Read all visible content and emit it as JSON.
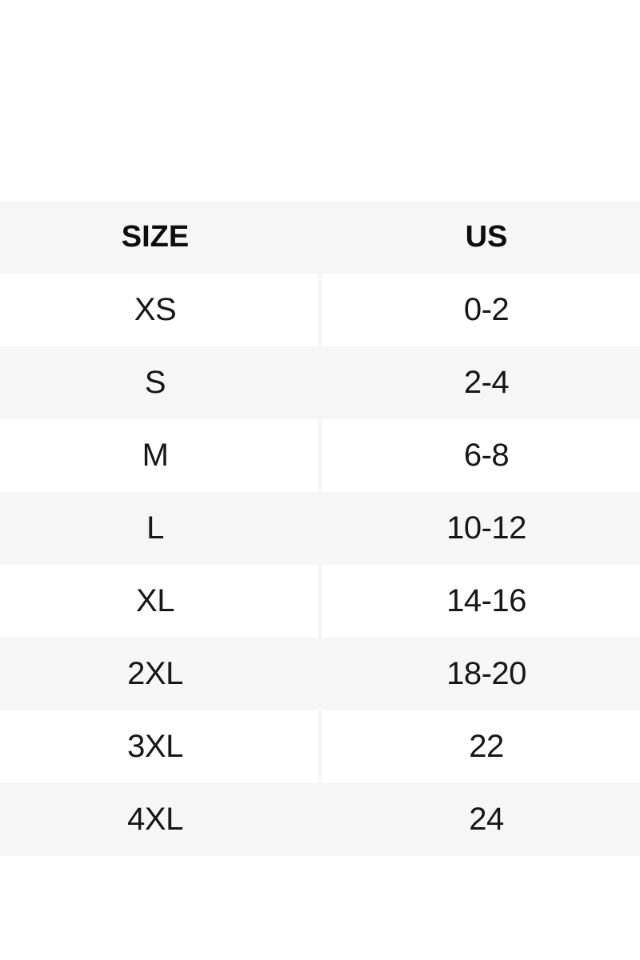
{
  "colors": {
    "page_bg": "#ffffff",
    "stripe_bg": "#f6f6f6",
    "row_bg": "#ffffff",
    "text": "#171717",
    "header_text": "#0d0d0d",
    "divider": "#f6f6f6"
  },
  "size_chart": {
    "columns": [
      {
        "id": "size",
        "label": "SIZE"
      },
      {
        "id": "us",
        "label": "US"
      }
    ],
    "rows": [
      {
        "size": "XS",
        "us": "0-2"
      },
      {
        "size": "S",
        "us": "2-4"
      },
      {
        "size": "M",
        "us": "6-8"
      },
      {
        "size": "L",
        "us": "10-12"
      },
      {
        "size": "XL",
        "us": "14-16"
      },
      {
        "size": "2XL",
        "us": "18-20"
      },
      {
        "size": "3XL",
        "us": "22"
      },
      {
        "size": "4XL",
        "us": "24"
      }
    ]
  }
}
